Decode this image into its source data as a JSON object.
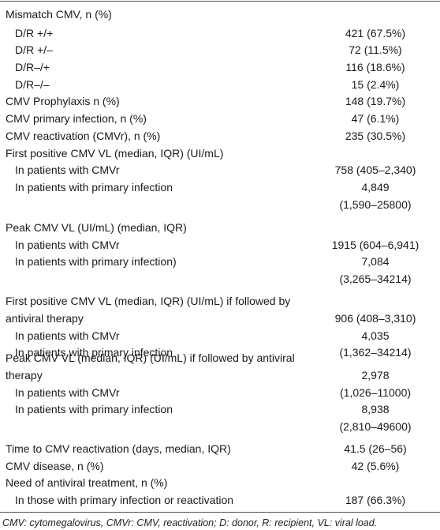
{
  "table": {
    "rows": [
      {
        "label": "Mismatch CMV, n (%)"
      },
      {
        "label": "D/R +/+",
        "value": "421 (67.5%)"
      },
      {
        "label": "D/R +/–",
        "value": "72 (11.5%)"
      },
      {
        "label": "D/R–/+",
        "value": "116 (18.6%)"
      },
      {
        "label": "D/R–/–",
        "value": "15 (2.4%)"
      },
      {
        "label": "CMV Prophylaxis n (%)",
        "value": "148 (19.7%)"
      },
      {
        "label": "CMV primary infection, n (%)",
        "value": "47 (6.1%)"
      },
      {
        "label": "CMV reactivation (CMVr), n (%)",
        "value": "235 (30.5%)"
      },
      {
        "label": "First positive CMV VL (median, IQR) (UI/mL)"
      },
      {
        "label": "In patients with CMVr",
        "value": "758 (405–2,340)"
      },
      {
        "label": "In patients with primary infection",
        "value": "4,849"
      },
      {
        "value": "(1,590–25800)"
      },
      {
        "label": "Peak CMV VL (UI/mL) (median, IQR)"
      },
      {
        "label": "In patients with CMVr",
        "value": "1915 (604–6,941)"
      },
      {
        "label": "In patients with primary infection)",
        "value": "7,084"
      },
      {
        "value": "(3,265–34214)"
      },
      {
        "label": "First positive CMV VL (median, IQR) (UI/mL) if followed by"
      },
      {
        "label": "antiviral therapy",
        "value": "906 (408–3,310)"
      },
      {
        "label": "In patients with CMVr",
        "value": "4,035"
      },
      {
        "label": "In patients with primary infection",
        "value": "(1,362–34214)"
      },
      {
        "label": "Peak CMV VL (median, IQR) (UI/mL) if followed by antiviral"
      },
      {
        "label": "therapy",
        "value": "2,978"
      },
      {
        "label": "In patients with CMVr",
        "value": "(1,026–11000)"
      },
      {
        "label": "In patients with primary infection",
        "value": "8,938"
      },
      {
        "value": "(2,810–49600)"
      },
      {
        "label": "Time to CMV reactivation (days, median, IQR)",
        "value": "41.5 (26–56)"
      },
      {
        "label": "CMV disease, n (%)",
        "value": "42 (5.6%)"
      },
      {
        "label": "Need of antiviral treatment, n (%)"
      },
      {
        "label": "In those with primary infection or reactivation",
        "value": "187 (66.3%)"
      }
    ],
    "footnote": "CMV: cytomegalovirus, CMVr: CMV, reactivation; D: donor, R: recipient, VL: viral load."
  }
}
